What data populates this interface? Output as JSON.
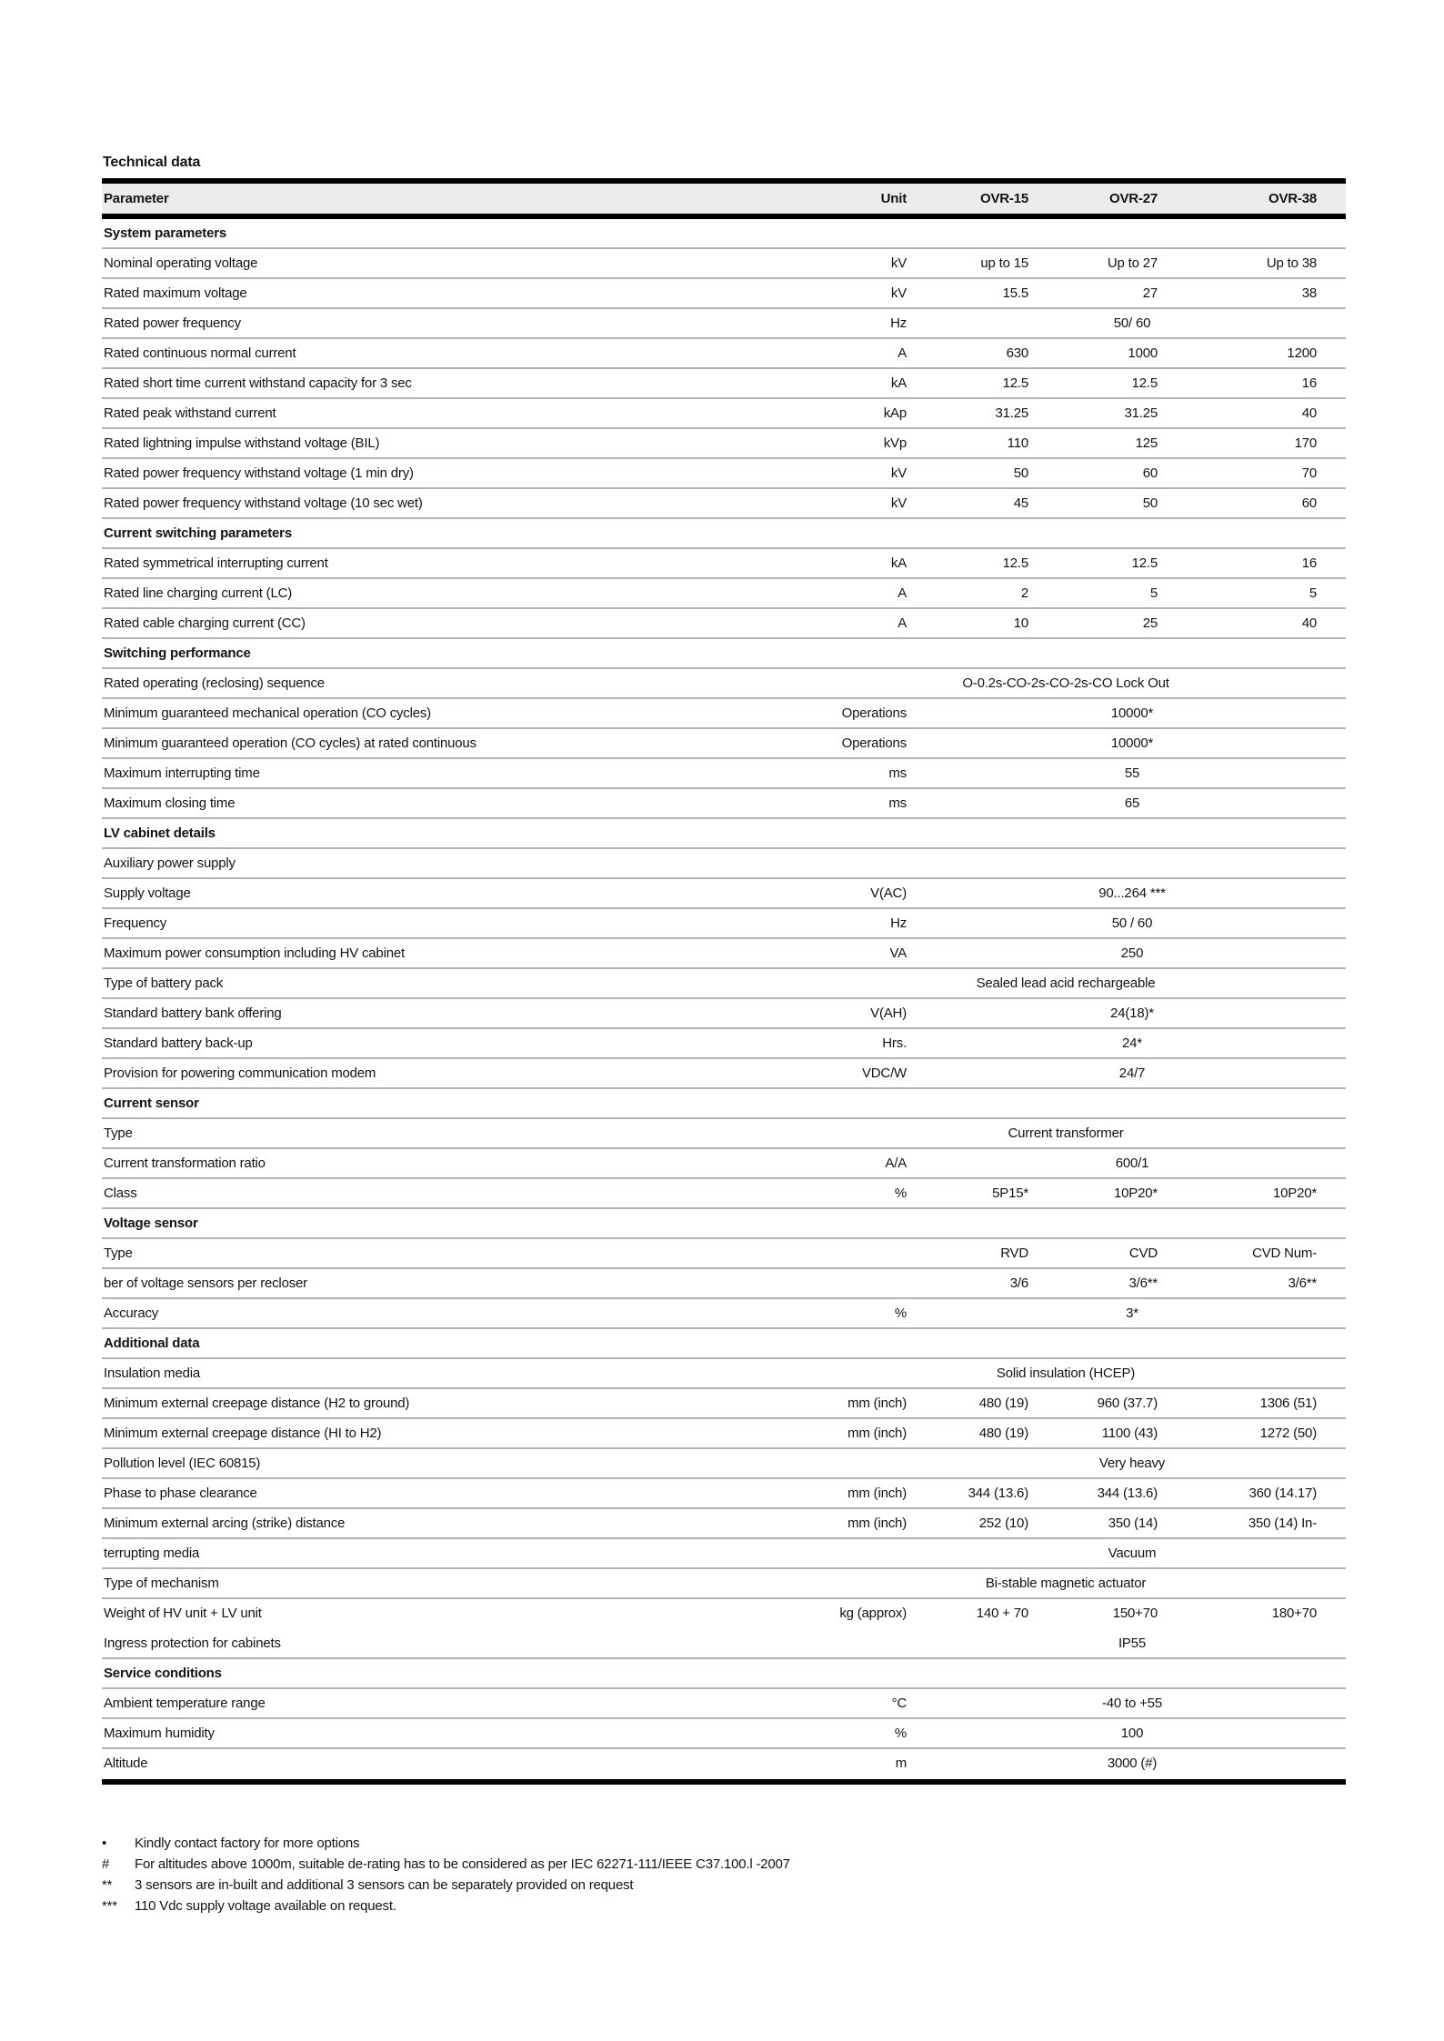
{
  "page": {
    "title": "Technical data"
  },
  "colors": {
    "header_bg": "#ececec",
    "row_rule": "#b3b3b3",
    "heavy_rule": "#000000"
  },
  "table": {
    "headers": {
      "parameter": "Parameter",
      "unit": "Unit",
      "col1": "OVR-15",
      "col2": "OVR-27",
      "col3": "OVR-38"
    },
    "rows": [
      {
        "kind": "section",
        "label": "System parameters"
      },
      {
        "kind": "data",
        "param": "Nominal operating voltage",
        "unit": "kV",
        "cells": [
          "up to 15",
          "Up to 27",
          "Up to 38"
        ]
      },
      {
        "kind": "data",
        "param": "Rated maximum voltage",
        "unit": "kV",
        "cells": [
          "15.5",
          "27",
          "38"
        ]
      },
      {
        "kind": "data",
        "param": "Rated power frequency",
        "unit": "Hz",
        "merged": "50/ 60",
        "span": "mid"
      },
      {
        "kind": "data",
        "param": "Rated continuous normal current",
        "unit": "A",
        "cells": [
          "630",
          "1000",
          "1200"
        ]
      },
      {
        "kind": "data",
        "param": "Rated short time current withstand capacity for 3 sec",
        "unit": "kA",
        "cells": [
          "12.5",
          "12.5",
          "16"
        ]
      },
      {
        "kind": "data",
        "param": "Rated peak withstand current",
        "unit": "kAp",
        "cells": [
          "31.25",
          "31.25",
          "40"
        ]
      },
      {
        "kind": "data",
        "param": "Rated lightning impulse withstand voltage (BIL)",
        "unit": "kVp",
        "cells": [
          "110",
          "125",
          "170"
        ]
      },
      {
        "kind": "data",
        "param": "Rated power frequency withstand voltage (1 min dry)",
        "unit": "kV",
        "cells": [
          "50",
          "60",
          "70"
        ]
      },
      {
        "kind": "data",
        "param": "Rated power frequency withstand voltage (10 sec wet)",
        "unit": "kV",
        "cells": [
          "45",
          "50",
          "60"
        ]
      },
      {
        "kind": "section",
        "label": "Current switching parameters"
      },
      {
        "kind": "data",
        "param": "Rated symmetrical interrupting current",
        "unit": "kA",
        "cells": [
          "12.5",
          "12.5",
          "16"
        ]
      },
      {
        "kind": "data",
        "param": "Rated line charging current (LC)",
        "unit": "A",
        "cells": [
          "2",
          "5",
          "5"
        ]
      },
      {
        "kind": "data",
        "param": "Rated cable charging current (CC)",
        "unit": "A",
        "cells": [
          "10",
          "25",
          "40"
        ]
      },
      {
        "kind": "section",
        "label": "Switching performance"
      },
      {
        "kind": "data",
        "param": "Rated operating (reclosing) sequence",
        "unit": "",
        "merged": "O-0.2s-CO-2s-CO-2s-CO  Lock Out",
        "span": "wide"
      },
      {
        "kind": "data",
        "param": "Minimum guaranteed mechanical operation (CO cycles)",
        "unit": "Operations",
        "merged": "10000*",
        "span": "mid"
      },
      {
        "kind": "data",
        "param": "Minimum guaranteed operation (CO cycles) at rated continuous",
        "unit": "Operations",
        "merged": "10000*",
        "span": "mid"
      },
      {
        "kind": "data",
        "param": "Maximum interrupting time",
        "unit": "ms",
        "merged": "55",
        "span": "mid"
      },
      {
        "kind": "data",
        "param": "Maximum closing time",
        "unit": "ms",
        "merged": "65",
        "span": "mid"
      },
      {
        "kind": "section",
        "label": "LV cabinet details"
      },
      {
        "kind": "data",
        "param": "Auxiliary power supply",
        "unit": ""
      },
      {
        "kind": "data",
        "param": "Supply voltage",
        "unit": "V(AC)",
        "merged": "90...264 ***",
        "span": "mid"
      },
      {
        "kind": "data",
        "param": "Frequency",
        "unit": "Hz",
        "merged": "50 / 60",
        "span": "mid"
      },
      {
        "kind": "data",
        "param": "Maximum power consumption including HV cabinet",
        "unit": "VA",
        "merged": "250",
        "span": "mid"
      },
      {
        "kind": "data",
        "param": "Type of battery pack",
        "unit": "",
        "merged": "Sealed lead acid rechargeable",
        "span": "wide"
      },
      {
        "kind": "data",
        "param": "Standard battery bank offering",
        "unit": "V(AH)",
        "merged": "24(18)*",
        "span": "mid"
      },
      {
        "kind": "data",
        "param": "Standard battery back-up",
        "unit": "Hrs.",
        "merged": "24*",
        "span": "mid"
      },
      {
        "kind": "data",
        "param": "Provision for powering communication modem",
        "unit": "VDC/W",
        "merged": "24/7",
        "span": "mid"
      },
      {
        "kind": "section",
        "label": "Current sensor"
      },
      {
        "kind": "data",
        "param": "Type",
        "unit": "",
        "merged": "Current transformer",
        "span": "wide"
      },
      {
        "kind": "data",
        "param": "Current transformation ratio",
        "unit": "A/A",
        "merged": "600/1",
        "span": "mid"
      },
      {
        "kind": "data",
        "param": "Class",
        "unit": "%",
        "cells": [
          "5P15*",
          "10P20*",
          "10P20*"
        ]
      },
      {
        "kind": "section",
        "label": "Voltage sensor"
      },
      {
        "kind": "data",
        "param": "Type",
        "unit": "",
        "cells": [
          "RVD",
          "CVD",
          "CVD Num-"
        ]
      },
      {
        "kind": "data",
        "param": "ber of voltage sensors per recloser",
        "unit": "",
        "cells": [
          "3/6",
          "3/6**",
          "3/6**"
        ]
      },
      {
        "kind": "data",
        "param": "Accuracy",
        "unit": "%",
        "merged": "3*",
        "span": "mid"
      },
      {
        "kind": "section",
        "label": "Additional data"
      },
      {
        "kind": "data",
        "param": "Insulation media",
        "unit": "",
        "merged": "Solid insulation (HCEP)",
        "span": "wide"
      },
      {
        "kind": "data",
        "param": "Minimum external creepage distance (H2 to ground)",
        "unit": "mm (inch)",
        "cells": [
          "480 (19)",
          "960 (37.7)",
          "1306 (51)"
        ]
      },
      {
        "kind": "data",
        "param": "Minimum external creepage distance (HI to H2)",
        "unit": "mm (inch)",
        "cells": [
          "480 (19)",
          "1100 (43)",
          "1272 (50)"
        ]
      },
      {
        "kind": "data",
        "param": "Pollution level (IEC 60815)",
        "unit": "",
        "merged": "Very heavy",
        "span": "mid"
      },
      {
        "kind": "data",
        "param": "Phase to phase clearance",
        "unit": "mm (inch)",
        "cells": [
          "344 (13.6)",
          "344 (13.6)",
          "360 (14.17)"
        ]
      },
      {
        "kind": "data",
        "param": "Minimum external arcing (strike) distance",
        "unit": "mm (inch)",
        "cells": [
          "252 (10)",
          "350 (14)",
          "350 (14) In-"
        ]
      },
      {
        "kind": "data",
        "param": "terrupting media",
        "unit": "",
        "merged": "Vacuum",
        "span": "mid"
      },
      {
        "kind": "data",
        "param": "Type of mechanism",
        "unit": "",
        "merged": "Bi-stable magnetic actuator",
        "span": "wide"
      },
      {
        "kind": "data",
        "param": "Weight of HV unit + LV unit",
        "unit": "kg (approx)",
        "cells": [
          "140 + 70",
          "150+70",
          "180+70"
        ],
        "no_border": true
      },
      {
        "kind": "data",
        "param": "Ingress protection for cabinets",
        "unit": "",
        "merged": "IP55",
        "span": "mid"
      },
      {
        "kind": "section",
        "label": "Service conditions"
      },
      {
        "kind": "data",
        "param": "Ambient temperature range",
        "unit": "°C",
        "merged": "-40 to +55",
        "span": "mid"
      },
      {
        "kind": "data",
        "param": "Maximum humidity",
        "unit": "%",
        "merged": "100",
        "span": "mid"
      },
      {
        "kind": "data",
        "param": "Altitude",
        "unit": "m",
        "merged": "3000 (#)",
        "span": "mid"
      }
    ]
  },
  "footnotes": [
    {
      "marker": "•",
      "text": "Kindly contact factory for more options"
    },
    {
      "marker": "#",
      "text": "For altitudes above 1000m, suitable de-rating has to be considered as per IEC 62271-111/IEEE C37.100.l -2007"
    },
    {
      "marker": "**",
      "text": "3 sensors are in-built and additional 3 sensors can be separately provided on request"
    },
    {
      "marker": "***",
      "text": "110 Vdc supply voltage available on request."
    }
  ]
}
